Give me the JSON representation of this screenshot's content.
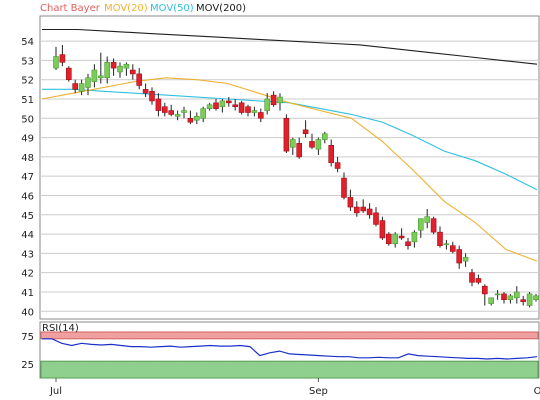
{
  "chart_data": {
    "type": "candlestick",
    "legend": [
      {
        "label": "Chart Bayer",
        "color": "#e06060"
      },
      {
        "label": "MOV(20)",
        "color": "#f0b030"
      },
      {
        "label": "MOV(50)",
        "color": "#30c0e0"
      },
      {
        "label": "MOV(200)",
        "color": "#202020"
      }
    ],
    "ylim": [
      39.6,
      55.3
    ],
    "y_ticks": [
      "40",
      "41",
      "42",
      "43",
      "44",
      "45",
      "46",
      "47",
      "48",
      "49",
      "50",
      "51",
      "52",
      "53",
      "54"
    ],
    "x_labels": [
      {
        "label": "Jul",
        "index": 0
      },
      {
        "label": "Sep",
        "index": 41
      },
      {
        "label": "Okt",
        "index": 76
      }
    ],
    "candles": [
      [
        52.6,
        53.7,
        52.5,
        53.2
      ],
      [
        53.3,
        53.8,
        52.7,
        52.9
      ],
      [
        52.6,
        52.7,
        51.9,
        52.0
      ],
      [
        51.8,
        52.0,
        51.3,
        51.5
      ],
      [
        51.4,
        52.0,
        51.2,
        51.8
      ],
      [
        51.6,
        52.3,
        51.2,
        52.1
      ],
      [
        51.9,
        52.8,
        51.6,
        52.5
      ],
      [
        52.1,
        53.4,
        51.8,
        52.2
      ],
      [
        52.1,
        53.2,
        51.8,
        52.9
      ],
      [
        52.9,
        53.1,
        52.2,
        52.6
      ],
      [
        52.4,
        52.9,
        52.1,
        52.7
      ],
      [
        52.6,
        52.9,
        52.2,
        52.8
      ],
      [
        52.5,
        52.8,
        52.0,
        52.3
      ],
      [
        52.3,
        52.6,
        51.5,
        51.7
      ],
      [
        51.5,
        51.8,
        51.1,
        51.3
      ],
      [
        51.4,
        51.6,
        50.7,
        50.9
      ],
      [
        51.0,
        51.3,
        50.1,
        50.4
      ],
      [
        50.6,
        50.8,
        50.1,
        50.3
      ],
      [
        50.4,
        50.7,
        50.1,
        50.2
      ],
      [
        50.1,
        50.4,
        49.9,
        50.2
      ],
      [
        50.3,
        50.6,
        50.0,
        50.4
      ],
      [
        50.0,
        50.4,
        49.7,
        49.8
      ],
      [
        49.9,
        50.3,
        49.7,
        50.1
      ],
      [
        50.0,
        50.6,
        49.8,
        50.5
      ],
      [
        50.5,
        50.8,
        50.4,
        50.7
      ],
      [
        50.8,
        51.0,
        50.4,
        50.5
      ],
      [
        50.6,
        51.0,
        50.3,
        50.9
      ],
      [
        50.9,
        51.1,
        50.6,
        50.8
      ],
      [
        50.7,
        51.0,
        50.4,
        50.6
      ],
      [
        50.8,
        50.9,
        50.2,
        50.3
      ],
      [
        50.6,
        50.7,
        50.1,
        50.3
      ],
      [
        50.3,
        50.6,
        50.1,
        50.4
      ],
      [
        50.3,
        50.5,
        49.8,
        50.0
      ],
      [
        50.4,
        51.3,
        50.2,
        51.0
      ],
      [
        51.2,
        51.4,
        50.6,
        50.7
      ],
      [
        50.8,
        51.3,
        50.4,
        51.1
      ],
      [
        50.0,
        50.2,
        48.2,
        48.3
      ],
      [
        48.5,
        49.0,
        48.1,
        48.9
      ],
      [
        48.7,
        49.0,
        47.9,
        48.0
      ],
      [
        49.4,
        49.9,
        49.0,
        49.2
      ],
      [
        48.8,
        49.2,
        48.4,
        48.5
      ],
      [
        48.4,
        49.0,
        48.1,
        48.9
      ],
      [
        48.9,
        49.3,
        48.7,
        49.2
      ],
      [
        48.6,
        48.9,
        47.5,
        47.7
      ]
    ],
    "candles_2": [
      [
        47.7,
        48.0,
        47.2,
        47.4
      ],
      [
        46.9,
        47.2,
        45.8,
        45.9
      ],
      [
        45.9,
        46.3,
        45.2,
        45.4
      ],
      [
        45.4,
        45.7,
        44.9,
        45.1
      ],
      [
        45.4,
        45.8,
        45.1,
        45.2
      ],
      [
        45.3,
        45.6,
        44.8,
        45.0
      ],
      [
        45.1,
        45.4,
        44.4,
        44.5
      ],
      [
        44.7,
        44.9,
        43.7,
        43.8
      ],
      [
        44.0,
        44.1,
        43.4,
        43.5
      ],
      [
        43.5,
        44.1,
        43.3,
        44.0
      ],
      [
        43.9,
        44.3,
        43.7,
        43.8
      ],
      [
        43.6,
        43.8,
        43.2,
        43.4
      ],
      [
        43.6,
        44.2,
        43.3,
        44.1
      ],
      [
        44.2,
        44.8,
        43.8,
        44.8
      ],
      [
        44.6,
        45.3,
        44.3,
        44.9
      ],
      [
        44.8,
        44.9,
        44.0,
        44.1
      ],
      [
        44.1,
        44.4,
        43.3,
        43.4
      ],
      [
        43.5,
        43.7,
        43.2,
        43.5
      ],
      [
        43.4,
        43.6,
        43.0,
        43.1
      ],
      [
        43.2,
        43.4,
        42.2,
        42.5
      ],
      [
        42.6,
        43.0,
        42.3,
        42.8
      ],
      [
        42.0,
        42.2,
        41.3,
        41.5
      ],
      [
        41.7,
        41.9,
        41.4,
        41.5
      ],
      [
        41.3,
        41.4,
        40.3,
        40.9
      ],
      [
        40.4,
        40.7,
        40.3,
        40.7
      ],
      [
        40.9,
        41.1,
        40.6,
        40.9
      ],
      [
        40.9,
        41.0,
        40.4,
        40.6
      ],
      [
        40.6,
        40.9,
        40.4,
        40.8
      ],
      [
        40.7,
        41.3,
        40.4,
        41.0
      ],
      [
        40.6,
        40.8,
        40.3,
        40.5
      ],
      [
        40.3,
        41.0,
        40.2,
        40.9
      ],
      [
        40.6,
        40.9,
        40.5,
        40.8
      ]
    ],
    "mov20": [
      51.0,
      51.3,
      51.6,
      51.9,
      52.1,
      52.0,
      51.8,
      51.3,
      50.8,
      50.4,
      50.0,
      48.8,
      47.3,
      45.7,
      44.6,
      43.2,
      42.6
    ],
    "mov50": [
      51.5,
      51.5,
      51.4,
      51.3,
      51.2,
      51.1,
      51.0,
      50.9,
      50.8,
      50.5,
      50.2,
      49.8,
      49.1,
      48.3,
      47.8,
      47.1,
      46.3
    ],
    "mov200": [
      54.6,
      54.6,
      54.5,
      54.4,
      54.3,
      54.2,
      54.1,
      54.0,
      53.9,
      53.8,
      53.6,
      53.4,
      53.2,
      53.0,
      52.8
    ],
    "rsi_label": "RSI(14)",
    "rsi_ylim": [
      0,
      100
    ],
    "rsi_ticks": [
      "25",
      "75"
    ],
    "rsi_bands": {
      "overbought": [
        70,
        100
      ],
      "oversold": [
        0,
        30
      ],
      "overbought_color": "#f4a0a0",
      "oversold_color": "#8fd08f"
    },
    "rsi": [
      70,
      70,
      62,
      58,
      62,
      60,
      59,
      60,
      58,
      56,
      56,
      55,
      56,
      57,
      55,
      56,
      57,
      58,
      57,
      57,
      58,
      56,
      40,
      45,
      48,
      43,
      42,
      41,
      40,
      39,
      38,
      38,
      36,
      36,
      37,
      36,
      36,
      43,
      40,
      39,
      38,
      37,
      36,
      35,
      35,
      34,
      35,
      34,
      35,
      36,
      38
    ],
    "grid": true,
    "colors": {
      "up": "#7ccc5a",
      "down": "#e0202a",
      "wick": "#222222",
      "rsi_line": "#1a30c8",
      "grid": "#cccccc",
      "frame": "#888888"
    }
  }
}
